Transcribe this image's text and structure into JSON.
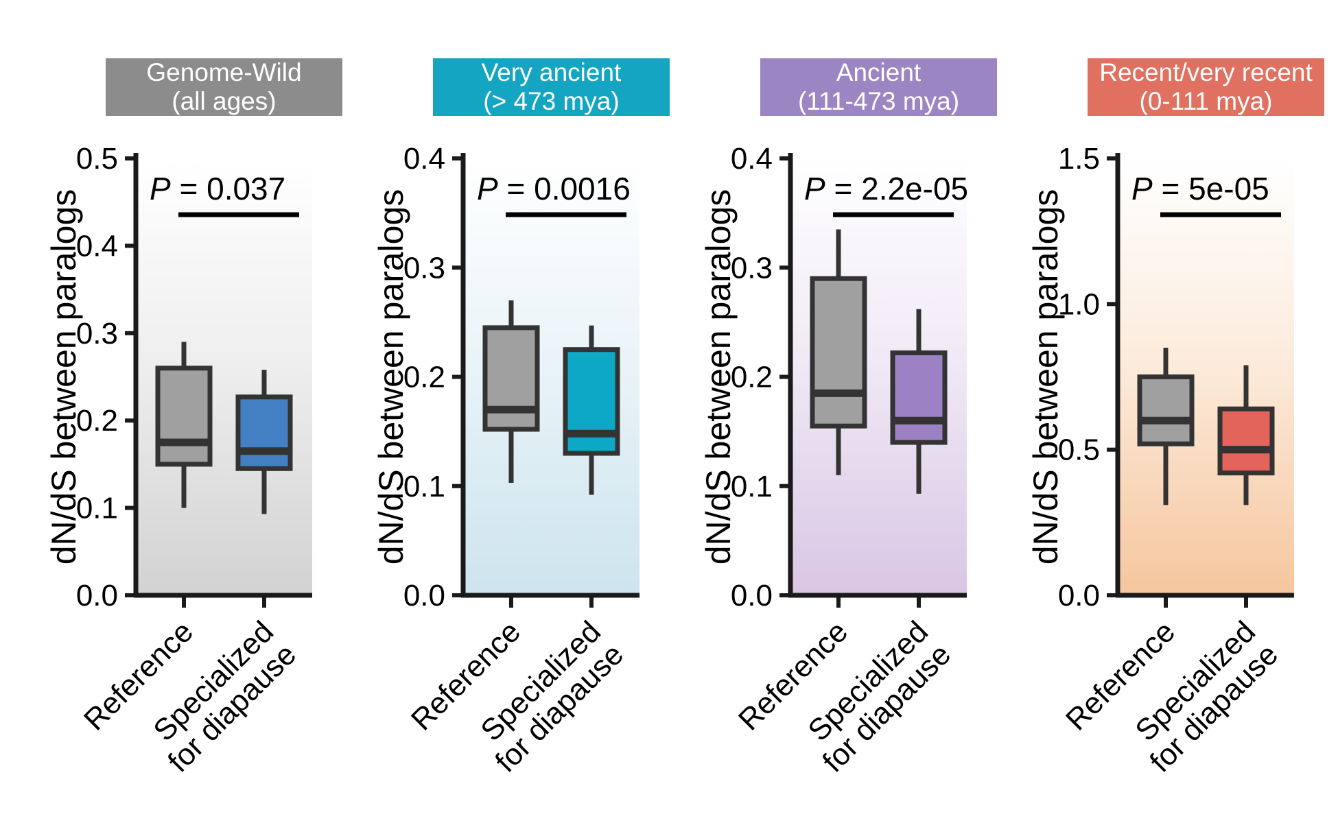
{
  "figure": {
    "ylabel": "dN/dS between paralogs",
    "series_names": [
      "Reference",
      "Specialized for diapause"
    ],
    "axis_color": "#1a1a1a",
    "box_stroke": "#333333",
    "text_color": "#000000"
  },
  "chart_data": [
    {
      "type": "box",
      "title": "Genome-Wild",
      "subtitle": "(all ages)",
      "header_color": "#8c8c8c",
      "bg_top": "#ffffff",
      "bg_mid": "#efefef",
      "bg_bottom": "#d2d2d2",
      "p_italic": "P",
      "p_rest": "= 0.037",
      "ylim": [
        0,
        0.5
      ],
      "yticks": [
        0.0,
        0.1,
        0.2,
        0.3,
        0.4,
        0.5
      ],
      "ytick_labels": [
        "0.0",
        "0.1",
        "0.2",
        "0.3",
        "0.4",
        "0.5"
      ],
      "categories": [
        [
          "Reference"
        ],
        [
          "Specialized",
          "for diapause"
        ]
      ],
      "boxes": [
        {
          "name": "Reference",
          "fill": "#a0a0a0",
          "whisker_low": 0.1,
          "q1": 0.15,
          "median": 0.175,
          "q3": 0.26,
          "whisker_high": 0.29
        },
        {
          "name": "Specialized for diapause",
          "fill": "#4380c4",
          "whisker_low": 0.093,
          "q1": 0.145,
          "median": 0.165,
          "q3": 0.227,
          "whisker_high": 0.258
        }
      ]
    },
    {
      "type": "box",
      "title": "Very ancient",
      "subtitle": "(> 473 mya)",
      "header_color": "#14a5c3",
      "bg_top": "#ffffff",
      "bg_mid": "#eaf4f8",
      "bg_bottom": "#cde4ee",
      "p_italic": "P",
      "p_rest": "= 0.0016",
      "ylim": [
        0,
        0.4
      ],
      "yticks": [
        0.0,
        0.1,
        0.2,
        0.3,
        0.4
      ],
      "ytick_labels": [
        "0.0",
        "0.1",
        "0.2",
        "0.3",
        "0.4"
      ],
      "categories": [
        [
          "Reference"
        ],
        [
          "Specialized",
          "for diapause"
        ]
      ],
      "boxes": [
        {
          "name": "Reference",
          "fill": "#a0a0a0",
          "whisker_low": 0.103,
          "q1": 0.152,
          "median": 0.17,
          "q3": 0.245,
          "whisker_high": 0.27
        },
        {
          "name": "Specialized for diapause",
          "fill": "#0ca8c6",
          "whisker_low": 0.092,
          "q1": 0.13,
          "median": 0.148,
          "q3": 0.225,
          "whisker_high": 0.247
        }
      ]
    },
    {
      "type": "box",
      "title": "Ancient",
      "subtitle": "(111-473 mya)",
      "header_color": "#9c85c3",
      "bg_top": "#ffffff",
      "bg_mid": "#f1eaf6",
      "bg_bottom": "#d9c6e4",
      "p_italic": "P",
      "p_rest": "= 2.2e-05",
      "ylim": [
        0,
        0.4
      ],
      "yticks": [
        0.0,
        0.1,
        0.2,
        0.3,
        0.4
      ],
      "ytick_labels": [
        "0.0",
        "0.1",
        "0.2",
        "0.3",
        "0.4"
      ],
      "categories": [
        [
          "Reference"
        ],
        [
          "Specialized",
          "for diapause"
        ]
      ],
      "boxes": [
        {
          "name": "Reference",
          "fill": "#a0a0a0",
          "whisker_low": 0.11,
          "q1": 0.155,
          "median": 0.185,
          "q3": 0.29,
          "whisker_high": 0.335
        },
        {
          "name": "Specialized for diapause",
          "fill": "#9c82c4",
          "whisker_low": 0.093,
          "q1": 0.14,
          "median": 0.16,
          "q3": 0.222,
          "whisker_high": 0.262
        }
      ]
    },
    {
      "type": "box",
      "title": "Recent/very recent",
      "subtitle": "(0-111 mya)",
      "header_color": "#e0705f",
      "bg_top": "#ffffff",
      "bg_mid": "#fcecdd",
      "bg_bottom": "#f6c69e",
      "p_italic": "P",
      "p_rest": "= 5e-05",
      "ylim": [
        0,
        1.5
      ],
      "yticks": [
        0.0,
        0.5,
        1.0,
        1.5
      ],
      "ytick_labels": [
        "0.0",
        "0.5",
        "1.0",
        "1.5"
      ],
      "categories": [
        [
          "Reference"
        ],
        [
          "Specialized",
          "for diapause"
        ]
      ],
      "boxes": [
        {
          "name": "Reference",
          "fill": "#a0a0a0",
          "whisker_low": 0.31,
          "q1": 0.52,
          "median": 0.6,
          "q3": 0.75,
          "whisker_high": 0.85
        },
        {
          "name": "Specialized for diapause",
          "fill": "#e2645a",
          "whisker_low": 0.31,
          "q1": 0.42,
          "median": 0.5,
          "q3": 0.64,
          "whisker_high": 0.79
        }
      ]
    }
  ]
}
